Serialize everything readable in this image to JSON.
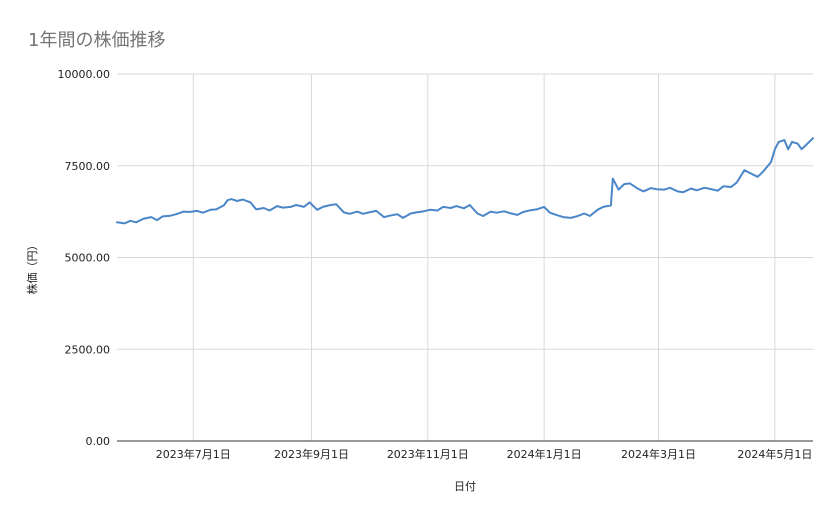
{
  "chart_data": {
    "type": "line",
    "title": "1年間の株価推移",
    "xlabel": "日付",
    "ylabel": "株価（円）",
    "ylim": [
      0,
      10000
    ],
    "y_ticks": [
      "0.00",
      "2500.00",
      "5000.00",
      "7500.00",
      "10000.00"
    ],
    "x_ticks": [
      "2023年7月1日",
      "2023年9月1日",
      "2023年11月1日",
      "2024年1月1日",
      "2024年3月1日",
      "2024年5月1日"
    ],
    "x_tick_dates": [
      "2023-07-01",
      "2023-09-01",
      "2023-11-01",
      "2024-01-01",
      "2024-03-01",
      "2024-05-01"
    ],
    "xlim": [
      "2023-05-22",
      "2024-05-21"
    ],
    "grid": true,
    "line_color": "#4a86c8",
    "series": [
      {
        "values": [
          [
            "2023-05-22",
            5960
          ],
          [
            "2023-05-26",
            5930
          ],
          [
            "2023-05-29",
            6000
          ],
          [
            "2023-06-01",
            5960
          ],
          [
            "2023-06-05",
            6060
          ],
          [
            "2023-06-09",
            6100
          ],
          [
            "2023-06-12",
            6020
          ],
          [
            "2023-06-15",
            6120
          ],
          [
            "2023-06-19",
            6140
          ],
          [
            "2023-06-22",
            6180
          ],
          [
            "2023-06-26",
            6250
          ],
          [
            "2023-06-29",
            6240
          ],
          [
            "2023-07-03",
            6270
          ],
          [
            "2023-07-06",
            6220
          ],
          [
            "2023-07-10",
            6300
          ],
          [
            "2023-07-13",
            6310
          ],
          [
            "2023-07-17",
            6420
          ],
          [
            "2023-07-19",
            6560
          ],
          [
            "2023-07-21",
            6590
          ],
          [
            "2023-07-24",
            6540
          ],
          [
            "2023-07-27",
            6580
          ],
          [
            "2023-07-31",
            6500
          ],
          [
            "2023-08-03",
            6310
          ],
          [
            "2023-08-07",
            6350
          ],
          [
            "2023-08-10",
            6280
          ],
          [
            "2023-08-14",
            6400
          ],
          [
            "2023-08-17",
            6360
          ],
          [
            "2023-08-21",
            6380
          ],
          [
            "2023-08-24",
            6430
          ],
          [
            "2023-08-28",
            6380
          ],
          [
            "2023-08-31",
            6500
          ],
          [
            "2023-09-04",
            6300
          ],
          [
            "2023-09-07",
            6380
          ],
          [
            "2023-09-11",
            6430
          ],
          [
            "2023-09-14",
            6450
          ],
          [
            "2023-09-18",
            6230
          ],
          [
            "2023-09-21",
            6190
          ],
          [
            "2023-09-25",
            6250
          ],
          [
            "2023-09-28",
            6190
          ],
          [
            "2023-10-02",
            6240
          ],
          [
            "2023-10-05",
            6270
          ],
          [
            "2023-10-09",
            6100
          ],
          [
            "2023-10-12",
            6140
          ],
          [
            "2023-10-16",
            6180
          ],
          [
            "2023-10-19",
            6080
          ],
          [
            "2023-10-23",
            6200
          ],
          [
            "2023-10-26",
            6230
          ],
          [
            "2023-10-30",
            6260
          ],
          [
            "2023-11-02",
            6300
          ],
          [
            "2023-11-06",
            6280
          ],
          [
            "2023-11-09",
            6380
          ],
          [
            "2023-11-13",
            6350
          ],
          [
            "2023-11-16",
            6400
          ],
          [
            "2023-11-20",
            6340
          ],
          [
            "2023-11-23",
            6430
          ],
          [
            "2023-11-27",
            6200
          ],
          [
            "2023-11-30",
            6130
          ],
          [
            "2023-12-04",
            6250
          ],
          [
            "2023-12-07",
            6220
          ],
          [
            "2023-12-11",
            6260
          ],
          [
            "2023-12-14",
            6210
          ],
          [
            "2023-12-18",
            6160
          ],
          [
            "2023-12-21",
            6240
          ],
          [
            "2023-12-25",
            6290
          ],
          [
            "2023-12-28",
            6310
          ],
          [
            "2024-01-01",
            6380
          ],
          [
            "2024-01-04",
            6220
          ],
          [
            "2024-01-08",
            6150
          ],
          [
            "2024-01-11",
            6100
          ],
          [
            "2024-01-15",
            6080
          ],
          [
            "2024-01-18",
            6120
          ],
          [
            "2024-01-22",
            6200
          ],
          [
            "2024-01-25",
            6130
          ],
          [
            "2024-01-29",
            6300
          ],
          [
            "2024-02-01",
            6380
          ],
          [
            "2024-02-05",
            6420
          ],
          [
            "2024-02-06",
            7150
          ],
          [
            "2024-02-09",
            6850
          ],
          [
            "2024-02-12",
            7000
          ],
          [
            "2024-02-15",
            7020
          ],
          [
            "2024-02-19",
            6880
          ],
          [
            "2024-02-22",
            6800
          ],
          [
            "2024-02-26",
            6890
          ],
          [
            "2024-02-29",
            6860
          ],
          [
            "2024-03-04",
            6850
          ],
          [
            "2024-03-07",
            6900
          ],
          [
            "2024-03-11",
            6800
          ],
          [
            "2024-03-14",
            6780
          ],
          [
            "2024-03-18",
            6880
          ],
          [
            "2024-03-21",
            6830
          ],
          [
            "2024-03-25",
            6900
          ],
          [
            "2024-03-28",
            6870
          ],
          [
            "2024-04-01",
            6820
          ],
          [
            "2024-04-04",
            6940
          ],
          [
            "2024-04-08",
            6920
          ],
          [
            "2024-04-11",
            7040
          ],
          [
            "2024-04-15",
            7380
          ],
          [
            "2024-04-18",
            7300
          ],
          [
            "2024-04-22",
            7200
          ],
          [
            "2024-04-25",
            7350
          ],
          [
            "2024-04-29",
            7600
          ],
          [
            "2024-05-01",
            7950
          ],
          [
            "2024-05-03",
            8150
          ],
          [
            "2024-05-06",
            8200
          ],
          [
            "2024-05-08",
            7950
          ],
          [
            "2024-05-10",
            8150
          ],
          [
            "2024-05-13",
            8100
          ],
          [
            "2024-05-15",
            7950
          ],
          [
            "2024-05-17",
            8050
          ],
          [
            "2024-05-21",
            8250
          ]
        ]
      }
    ]
  }
}
